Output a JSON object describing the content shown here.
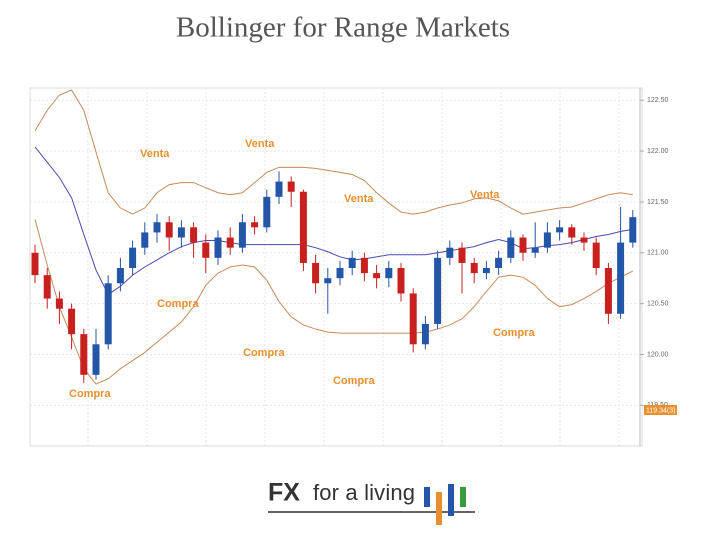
{
  "title": "Bollinger for Range Markets",
  "chart_data": {
    "type": "candlestick",
    "open": [
      121.0,
      120.78,
      120.55,
      120.45,
      120.2,
      119.8,
      120.1,
      120.7,
      120.85,
      121.05,
      121.2,
      121.3,
      121.15,
      121.25,
      121.1,
      120.95,
      121.15,
      121.05,
      121.3,
      121.25,
      121.55,
      121.7,
      121.6,
      120.9,
      120.7,
      120.75,
      120.85,
      120.95,
      120.8,
      120.75,
      120.85,
      120.6,
      120.1,
      120.3,
      120.95,
      121.05,
      120.9,
      120.8,
      120.85,
      120.95,
      121.15,
      121.0,
      121.05,
      121.2,
      121.25,
      121.15,
      121.1,
      120.85,
      120.4,
      121.1
    ],
    "high": [
      121.08,
      120.85,
      120.62,
      120.5,
      120.25,
      120.25,
      120.78,
      120.95,
      121.12,
      121.3,
      121.38,
      121.36,
      121.32,
      121.3,
      121.18,
      121.22,
      121.25,
      121.38,
      121.36,
      121.62,
      121.8,
      121.75,
      121.62,
      120.98,
      120.85,
      120.92,
      121.02,
      121.0,
      120.88,
      120.92,
      120.9,
      120.65,
      120.38,
      121.02,
      121.12,
      121.1,
      120.95,
      120.92,
      121.02,
      121.22,
      121.18,
      121.3,
      121.3,
      121.32,
      121.28,
      121.2,
      121.15,
      120.9,
      121.45,
      121.42
    ],
    "low": [
      120.7,
      120.45,
      120.3,
      120.05,
      119.72,
      119.75,
      120.05,
      120.62,
      120.78,
      120.98,
      121.1,
      121.02,
      121.05,
      120.95,
      120.8,
      120.88,
      120.98,
      121.0,
      121.18,
      121.2,
      121.48,
      121.45,
      120.82,
      120.6,
      120.4,
      120.68,
      120.78,
      120.72,
      120.65,
      120.66,
      120.52,
      120.02,
      120.05,
      120.25,
      120.88,
      120.6,
      120.7,
      120.74,
      120.78,
      120.9,
      120.92,
      120.95,
      121.0,
      121.12,
      121.08,
      121.02,
      120.78,
      120.3,
      120.35,
      121.05
    ],
    "close": [
      120.78,
      120.55,
      120.45,
      120.2,
      119.8,
      120.1,
      120.7,
      120.85,
      121.05,
      121.2,
      121.3,
      121.15,
      121.25,
      121.1,
      120.95,
      121.15,
      121.05,
      121.3,
      121.25,
      121.55,
      121.7,
      121.6,
      120.9,
      120.7,
      120.75,
      120.85,
      120.95,
      120.8,
      120.75,
      120.85,
      120.6,
      120.1,
      120.3,
      120.95,
      121.05,
      120.9,
      120.8,
      120.85,
      120.95,
      121.15,
      121.0,
      121.05,
      121.2,
      121.25,
      121.15,
      121.1,
      120.85,
      120.4,
      121.1,
      121.35
    ],
    "up_color": "#2456a8",
    "down_color": "#c8201e",
    "bands": [
      {
        "color": "#c98a5a",
        "values": [
          122.2,
          122.4,
          122.55,
          122.6,
          122.4,
          121.99,
          121.59,
          121.44,
          121.38,
          121.44,
          121.59,
          121.67,
          121.69,
          121.69,
          121.64,
          121.59,
          121.57,
          121.59,
          121.69,
          121.79,
          121.84,
          121.84,
          121.84,
          121.83,
          121.81,
          121.79,
          121.77,
          121.71,
          121.59,
          121.49,
          121.4,
          121.38,
          121.4,
          121.44,
          121.47,
          121.49,
          121.53,
          121.54,
          121.51,
          121.44,
          121.38,
          121.4,
          121.42,
          121.44,
          121.45,
          121.49,
          121.53,
          121.57,
          121.59,
          121.57
        ]
      },
      {
        "color": "#4a4ab0",
        "values": [
          122.04,
          121.89,
          121.74,
          121.54,
          121.18,
          120.83,
          120.59,
          120.67,
          120.78,
          120.86,
          120.93,
          121.0,
          121.06,
          121.1,
          121.12,
          121.12,
          121.1,
          121.08,
          121.08,
          121.08,
          121.08,
          121.08,
          121.08,
          121.05,
          121.01,
          120.96,
          120.93,
          120.94,
          120.96,
          120.98,
          120.98,
          120.98,
          120.98,
          121.0,
          121.02,
          121.04,
          121.06,
          121.1,
          121.13,
          121.1,
          121.04,
          121.05,
          121.07,
          121.08,
          121.1,
          121.13,
          121.16,
          121.18,
          121.21,
          121.23
        ]
      },
      {
        "color": "#c98a5a",
        "values": [
          121.33,
          120.88,
          120.47,
          120.17,
          119.86,
          119.71,
          119.76,
          119.86,
          119.94,
          120.02,
          120.12,
          120.22,
          120.32,
          120.47,
          120.68,
          120.8,
          120.86,
          120.88,
          120.86,
          120.73,
          120.52,
          120.37,
          120.29,
          120.25,
          120.22,
          120.21,
          120.21,
          120.21,
          120.21,
          120.21,
          120.21,
          120.21,
          120.22,
          120.25,
          120.29,
          120.35,
          120.47,
          120.62,
          120.76,
          120.78,
          120.76,
          120.68,
          120.55,
          120.47,
          120.49,
          120.55,
          120.62,
          120.7,
          120.76,
          120.82
        ]
      }
    ],
    "ylim": [
      119.1,
      122.62
    ],
    "yticks": [
      {
        "value": 122.5,
        "label": "122.50"
      },
      {
        "value": 122,
        "label": "122.00"
      },
      {
        "value": 121.5,
        "label": "121.50"
      },
      {
        "value": 121,
        "label": "121.00"
      },
      {
        "value": 120.5,
        "label": "120.50"
      },
      {
        "value": 120,
        "label": "120.00"
      },
      {
        "value": 119.5,
        "label": "119.50"
      }
    ],
    "grid": true,
    "price_tag": "119.34(3)",
    "annotation_color": "#e8902f",
    "annotations": [
      "Venta",
      "Venta",
      "Venta",
      "Venta",
      "Compra",
      "Compra",
      "Compra",
      "Compra",
      "Compra"
    ]
  },
  "logo": {
    "bold": "FX",
    "text": "for a living"
  }
}
